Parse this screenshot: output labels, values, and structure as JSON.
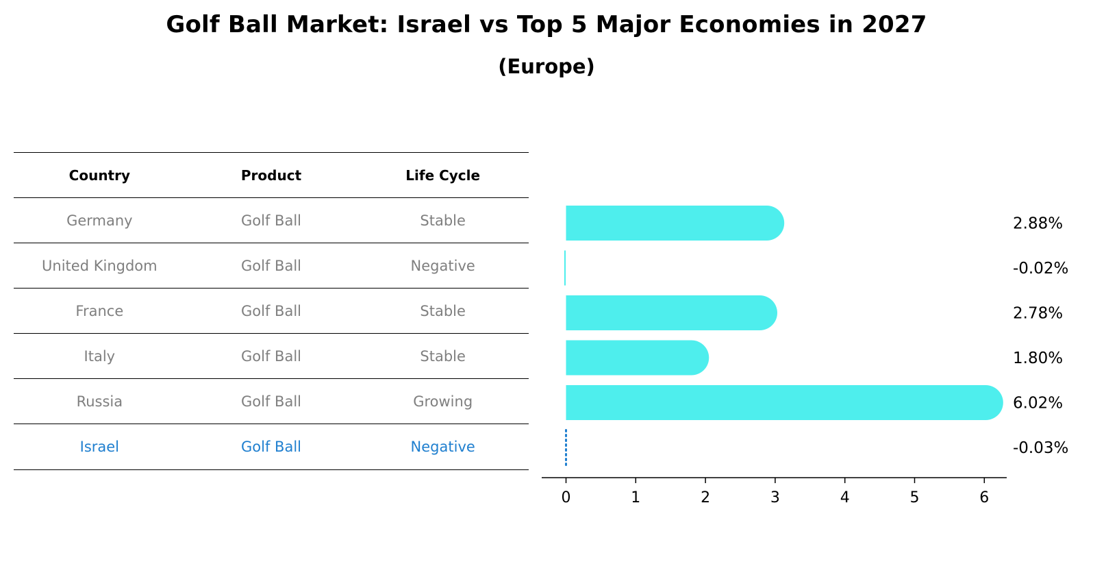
{
  "title": "Golf Ball Market: Israel vs Top 5 Major Economies in 2027",
  "subtitle": "(Europe)",
  "table": {
    "headers": [
      "Country",
      "Product",
      "Life Cycle"
    ],
    "rows": [
      {
        "country": "Germany",
        "product": "Golf Ball",
        "life_cycle": "Stable"
      },
      {
        "country": "United Kingdom",
        "product": "Golf Ball",
        "life_cycle": "Negative"
      },
      {
        "country": "France",
        "product": "Golf Ball",
        "life_cycle": "Stable"
      },
      {
        "country": "Italy",
        "product": "Golf Ball",
        "life_cycle": "Stable"
      },
      {
        "country": "Russia",
        "product": "Golf Ball",
        "life_cycle": "Growing"
      },
      {
        "country": "Israel",
        "product": "Golf Ball",
        "life_cycle": "Negative"
      }
    ]
  },
  "colors": {
    "bar": "#4eeeed",
    "highlight": "#1f7fcf",
    "muted_text": "#7f7f7f"
  },
  "chart_data": {
    "type": "bar",
    "orientation": "horizontal",
    "categories": [
      "Germany",
      "United Kingdom",
      "France",
      "Italy",
      "Russia",
      "Israel"
    ],
    "values": [
      2.88,
      -0.02,
      2.78,
      1.8,
      6.02,
      -0.03
    ],
    "value_labels": [
      "2.88%",
      "-0.02%",
      "2.78%",
      "1.80%",
      "6.02%",
      "-0.03%"
    ],
    "highlight_category": "Israel",
    "xlim": [
      -0.33,
      6.33
    ],
    "xticks": [
      0,
      1,
      2,
      3,
      4,
      5,
      6
    ],
    "xlabel": "",
    "ylabel": "",
    "grid": false
  }
}
